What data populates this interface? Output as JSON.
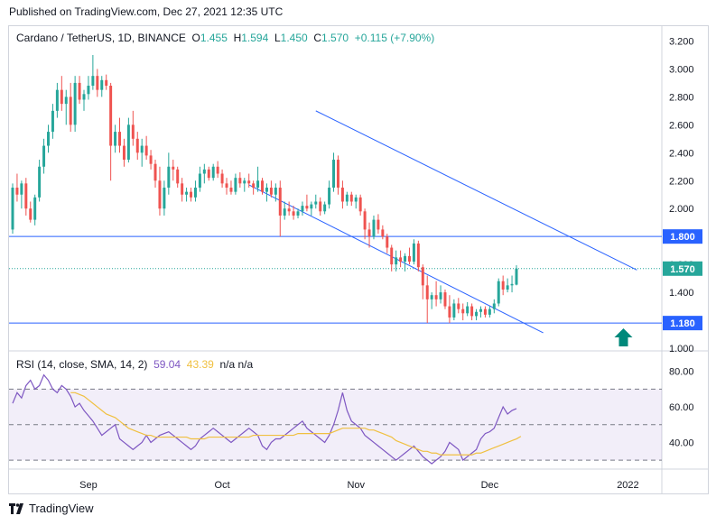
{
  "header": {
    "published": "Published on TradingView.com, Dec 27, 2021 12:35 UTC"
  },
  "legend": {
    "symbol": "Cardano / TetherUS, 1D, BINANCE",
    "o_label": "O",
    "o": "1.455",
    "h_label": "H",
    "h": "1.594",
    "l_label": "L",
    "l": "1.450",
    "c_label": "C",
    "c": "1.570",
    "change": "+0.115 (+7.90%)"
  },
  "rsi_legend": {
    "label": "RSI (14, close, SMA, 14, 2)",
    "rsi_value": "59.04",
    "sma_value": "43.39",
    "na": "n/a  n/a"
  },
  "footer": {
    "brand": "TradingView"
  },
  "colors": {
    "up": "#26a69a",
    "down": "#ef5350",
    "channel": "#2962ff",
    "rsi": "#7e57c2",
    "rsi_sma": "#f0c040"
  },
  "chart_data": {
    "type": "candlestick",
    "title": "Cardano / TetherUS, 1D, BINANCE",
    "price_axis": {
      "ylim": [
        1.0,
        3.3
      ],
      "ticks": [
        "3.200",
        "3.000",
        "2.800",
        "2.600",
        "2.400",
        "2.200",
        "2.000",
        "1.800",
        "1.600",
        "1.400",
        "1.200",
        "1.000"
      ]
    },
    "time_axis": {
      "labels": [
        "Sep",
        "Oct",
        "Nov",
        "Dec",
        "2022"
      ],
      "label_days": [
        17,
        47,
        77,
        107,
        138
      ],
      "total_days": 145
    },
    "price_labels": [
      {
        "value": 1.8,
        "text": "1.800",
        "kind": "support"
      },
      {
        "value": 1.57,
        "text": "1.570",
        "kind": "last"
      },
      {
        "value": 1.18,
        "text": "1.180",
        "kind": "support"
      }
    ],
    "horizontal_lines": [
      1.8,
      1.18
    ],
    "channel_lines": [
      {
        "from": [
          68,
          2.7
        ],
        "to": [
          140,
          1.56
        ]
      },
      {
        "from": [
          53,
          2.17
        ],
        "to": [
          119,
          1.11
        ]
      }
    ],
    "arrow": {
      "day": 137,
      "price": 1.0,
      "direction": "up"
    },
    "candles": [
      [
        1.85,
        2.18,
        1.82,
        2.15
      ],
      [
        2.15,
        2.25,
        2.05,
        2.1
      ],
      [
        2.1,
        2.2,
        2.0,
        2.18
      ],
      [
        2.18,
        2.22,
        1.95,
        2.0
      ],
      [
        2.0,
        2.05,
        1.9,
        1.92
      ],
      [
        1.92,
        2.1,
        1.88,
        2.08
      ],
      [
        2.08,
        2.35,
        2.05,
        2.3
      ],
      [
        2.3,
        2.5,
        2.25,
        2.45
      ],
      [
        2.45,
        2.6,
        2.4,
        2.55
      ],
      [
        2.55,
        2.75,
        2.5,
        2.7
      ],
      [
        2.7,
        2.9,
        2.65,
        2.85
      ],
      [
        2.85,
        2.95,
        2.7,
        2.75
      ],
      [
        2.75,
        2.85,
        2.6,
        2.8
      ],
      [
        2.8,
        2.9,
        2.55,
        2.6
      ],
      [
        2.6,
        2.95,
        2.55,
        2.9
      ],
      [
        2.9,
        2.95,
        2.75,
        2.78
      ],
      [
        2.78,
        2.85,
        2.7,
        2.82
      ],
      [
        2.82,
        2.95,
        2.78,
        2.88
      ],
      [
        2.88,
        3.1,
        2.85,
        2.95
      ],
      [
        2.95,
        3.0,
        2.8,
        2.85
      ],
      [
        2.85,
        2.95,
        2.8,
        2.92
      ],
      [
        2.92,
        2.96,
        2.85,
        2.88
      ],
      [
        2.88,
        2.9,
        2.2,
        2.45
      ],
      [
        2.45,
        2.6,
        2.4,
        2.55
      ],
      [
        2.55,
        2.65,
        2.4,
        2.45
      ],
      [
        2.45,
        2.5,
        2.3,
        2.35
      ],
      [
        2.35,
        2.65,
        2.33,
        2.6
      ],
      [
        2.6,
        2.7,
        2.45,
        2.5
      ],
      [
        2.5,
        2.55,
        2.35,
        2.4
      ],
      [
        2.4,
        2.5,
        2.3,
        2.45
      ],
      [
        2.45,
        2.52,
        2.35,
        2.38
      ],
      [
        2.38,
        2.42,
        2.28,
        2.32
      ],
      [
        2.32,
        2.35,
        2.15,
        2.2
      ],
      [
        2.2,
        2.3,
        1.95,
        2.0
      ],
      [
        2.0,
        2.2,
        1.95,
        2.15
      ],
      [
        2.15,
        2.4,
        2.1,
        2.3
      ],
      [
        2.3,
        2.35,
        2.2,
        2.28
      ],
      [
        2.28,
        2.3,
        2.15,
        2.18
      ],
      [
        2.18,
        2.22,
        2.05,
        2.1
      ],
      [
        2.1,
        2.15,
        2.05,
        2.12
      ],
      [
        2.12,
        2.15,
        2.05,
        2.08
      ],
      [
        2.08,
        2.2,
        2.05,
        2.15
      ],
      [
        2.15,
        2.3,
        2.12,
        2.25
      ],
      [
        2.25,
        2.32,
        2.18,
        2.28
      ],
      [
        2.28,
        2.3,
        2.2,
        2.22
      ],
      [
        2.22,
        2.32,
        2.2,
        2.3
      ],
      [
        2.3,
        2.34,
        2.22,
        2.25
      ],
      [
        2.25,
        2.28,
        2.15,
        2.18
      ],
      [
        2.18,
        2.22,
        2.1,
        2.15
      ],
      [
        2.15,
        2.2,
        2.1,
        2.12
      ],
      [
        2.12,
        2.25,
        2.1,
        2.22
      ],
      [
        2.22,
        2.26,
        2.15,
        2.18
      ],
      [
        2.18,
        2.22,
        2.12,
        2.2
      ],
      [
        2.2,
        2.25,
        2.15,
        2.18
      ],
      [
        2.18,
        2.2,
        2.1,
        2.15
      ],
      [
        2.15,
        2.3,
        2.12,
        2.2
      ],
      [
        2.2,
        2.22,
        2.1,
        2.12
      ],
      [
        2.12,
        2.18,
        2.05,
        2.15
      ],
      [
        2.15,
        2.2,
        2.08,
        2.1
      ],
      [
        2.1,
        2.18,
        2.05,
        2.15
      ],
      [
        2.15,
        2.2,
        1.8,
        1.95
      ],
      [
        1.95,
        2.05,
        1.92,
        2.0
      ],
      [
        2.0,
        2.05,
        1.95,
        1.98
      ],
      [
        1.98,
        2.02,
        1.92,
        1.95
      ],
      [
        1.95,
        2.0,
        1.93,
        1.98
      ],
      [
        1.98,
        2.05,
        1.95,
        2.02
      ],
      [
        2.02,
        2.1,
        1.98,
        2.0
      ],
      [
        2.0,
        2.05,
        1.95,
        2.03
      ],
      [
        2.03,
        2.1,
        2.0,
        2.05
      ],
      [
        2.05,
        2.08,
        1.95,
        1.98
      ],
      [
        1.98,
        2.05,
        1.96,
        2.03
      ],
      [
        2.03,
        2.2,
        2.0,
        2.15
      ],
      [
        2.15,
        2.4,
        2.12,
        2.35
      ],
      [
        2.35,
        2.38,
        2.1,
        2.15
      ],
      [
        2.15,
        2.2,
        2.0,
        2.05
      ],
      [
        2.05,
        2.12,
        2.02,
        2.1
      ],
      [
        2.1,
        2.12,
        2.02,
        2.05
      ],
      [
        2.05,
        2.1,
        2.0,
        2.08
      ],
      [
        2.08,
        2.1,
        1.95,
        1.98
      ],
      [
        1.98,
        2.0,
        1.78,
        1.85
      ],
      [
        1.85,
        1.9,
        1.72,
        1.8
      ],
      [
        1.8,
        1.95,
        1.78,
        1.92
      ],
      [
        1.92,
        1.96,
        1.82,
        1.85
      ],
      [
        1.85,
        1.88,
        1.78,
        1.8
      ],
      [
        1.8,
        1.82,
        1.68,
        1.72
      ],
      [
        1.72,
        1.74,
        1.55,
        1.6
      ],
      [
        1.6,
        1.7,
        1.55,
        1.65
      ],
      [
        1.65,
        1.7,
        1.58,
        1.62
      ],
      [
        1.62,
        1.68,
        1.55,
        1.66
      ],
      [
        1.66,
        1.72,
        1.6,
        1.62
      ],
      [
        1.62,
        1.78,
        1.6,
        1.75
      ],
      [
        1.75,
        1.77,
        1.55,
        1.58
      ],
      [
        1.58,
        1.6,
        1.35,
        1.45
      ],
      [
        1.45,
        1.52,
        1.18,
        1.35
      ],
      [
        1.35,
        1.4,
        1.28,
        1.38
      ],
      [
        1.38,
        1.48,
        1.3,
        1.35
      ],
      [
        1.35,
        1.45,
        1.32,
        1.4
      ],
      [
        1.4,
        1.42,
        1.28,
        1.3
      ],
      [
        1.3,
        1.38,
        1.18,
        1.22
      ],
      [
        1.22,
        1.35,
        1.2,
        1.32
      ],
      [
        1.32,
        1.36,
        1.25,
        1.28
      ],
      [
        1.28,
        1.32,
        1.2,
        1.25
      ],
      [
        1.25,
        1.33,
        1.23,
        1.3
      ],
      [
        1.3,
        1.32,
        1.2,
        1.23
      ],
      [
        1.23,
        1.28,
        1.2,
        1.26
      ],
      [
        1.26,
        1.3,
        1.22,
        1.28
      ],
      [
        1.28,
        1.3,
        1.22,
        1.24
      ],
      [
        1.24,
        1.3,
        1.22,
        1.28
      ],
      [
        1.28,
        1.35,
        1.25,
        1.32
      ],
      [
        1.32,
        1.5,
        1.3,
        1.48
      ],
      [
        1.48,
        1.52,
        1.38,
        1.42
      ],
      [
        1.42,
        1.5,
        1.4,
        1.45
      ],
      [
        1.45,
        1.52,
        1.4,
        1.46
      ],
      [
        1.455,
        1.594,
        1.45,
        1.57
      ]
    ],
    "rsi": {
      "label": "RSI (14, close, SMA, 14, 2)",
      "ylim": [
        25,
        90
      ],
      "ticks": [
        "80.00",
        "60.00",
        "40.00"
      ],
      "bands": [
        70,
        50,
        30
      ],
      "values": [
        62,
        68,
        65,
        72,
        75,
        70,
        72,
        78,
        75,
        70,
        68,
        72,
        70,
        66,
        60,
        62,
        58,
        55,
        52,
        48,
        44,
        46,
        48,
        50,
        42,
        40,
        38,
        36,
        38,
        40,
        44,
        40,
        42,
        44,
        45,
        46,
        44,
        42,
        40,
        38,
        36,
        38,
        42,
        44,
        46,
        48,
        46,
        44,
        42,
        40,
        42,
        44,
        46,
        48,
        46,
        44,
        38,
        36,
        40,
        42,
        42,
        44,
        46,
        48,
        50,
        52,
        48,
        46,
        44,
        42,
        40,
        44,
        50,
        58,
        68,
        58,
        52,
        50,
        48,
        44,
        42,
        40,
        38,
        36,
        34,
        32,
        30,
        32,
        34,
        36,
        38,
        35,
        32,
        30,
        28,
        30,
        32,
        35,
        40,
        38,
        36,
        30,
        32,
        34,
        36,
        42,
        45,
        46,
        48,
        54,
        60,
        56,
        58,
        59.04
      ],
      "sma_values": [
        null,
        null,
        null,
        null,
        null,
        null,
        null,
        null,
        null,
        null,
        null,
        null,
        null,
        68,
        68,
        67,
        66,
        64,
        62,
        60,
        58,
        56,
        55,
        54,
        52,
        50,
        48,
        47,
        46,
        45,
        44,
        44,
        43,
        43,
        43,
        43,
        43,
        43,
        43,
        43,
        42,
        42,
        42,
        42,
        43,
        43,
        43,
        43,
        43,
        43,
        43,
        43,
        43,
        43,
        44,
        44,
        44,
        44,
        44,
        44,
        44,
        44,
        44,
        44,
        45,
        45,
        45,
        45,
        45,
        45,
        45,
        45,
        46,
        47,
        48,
        48,
        48,
        48,
        48,
        48,
        47,
        47,
        46,
        45,
        44,
        43,
        41,
        40,
        39,
        38,
        37,
        36,
        35,
        35,
        34,
        34,
        33,
        33,
        33,
        33,
        33,
        33,
        33,
        33,
        34,
        34,
        35,
        36,
        37,
        38,
        39,
        40,
        41,
        42,
        43.39
      ]
    }
  }
}
